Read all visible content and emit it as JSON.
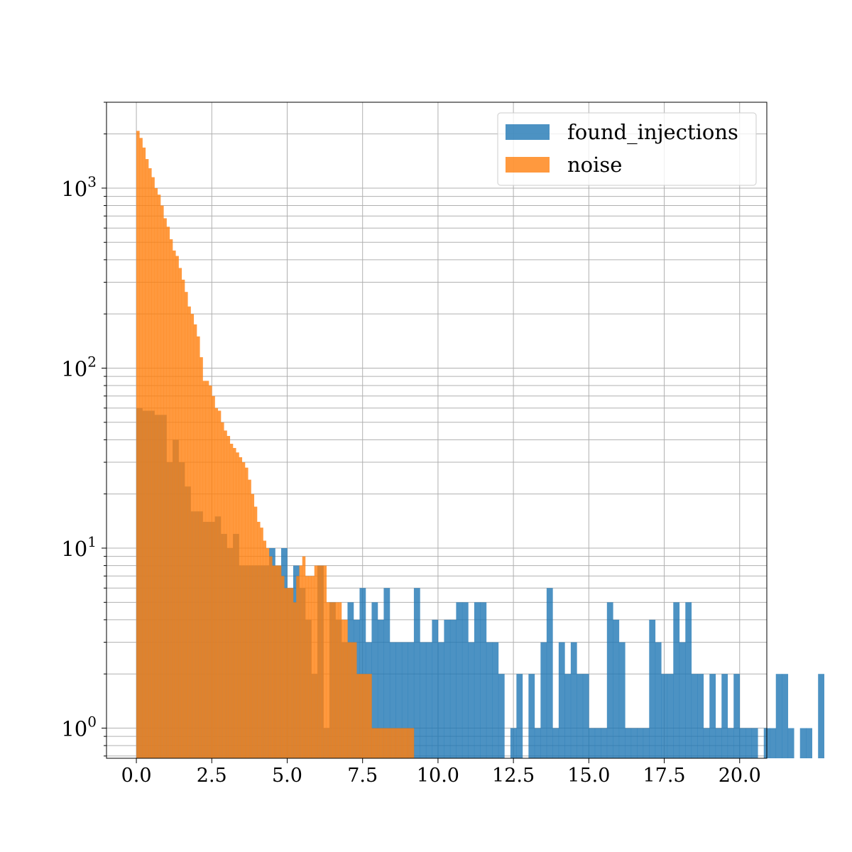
{
  "chart_data": {
    "type": "histogram",
    "xscale": "linear",
    "yscale": "log",
    "xlim": [
      -0.99,
      20.9
    ],
    "ylim": [
      0.68,
      3000
    ],
    "grid": true,
    "legend_position": "top-right",
    "x_ticks": [
      0,
      2.5,
      5,
      7.5,
      10,
      12.5,
      15,
      17.5,
      20
    ],
    "x_tick_labels": [
      "0.0",
      "2.5",
      "5.0",
      "7.5",
      "10.0",
      "12.5",
      "15.0",
      "17.5",
      "20.0"
    ],
    "y_ticks": [
      1,
      10,
      100,
      1000
    ],
    "y_tick_labels": [
      {
        "base": "10",
        "exp": "0"
      },
      {
        "base": "10",
        "exp": "1"
      },
      {
        "base": "10",
        "exp": "2"
      },
      {
        "base": "10",
        "exp": "3"
      }
    ],
    "series": [
      {
        "name": "found_injections",
        "color": "#1f77b4",
        "alpha": 0.8,
        "bin_start": 0.0,
        "bin_width": 0.2,
        "counts": [
          60,
          58,
          58,
          55,
          55,
          30,
          40,
          30,
          22,
          16,
          16,
          14,
          14,
          15,
          12,
          10,
          12,
          8,
          8,
          8,
          8,
          8,
          10,
          8,
          10,
          6,
          8,
          6,
          4,
          2,
          8,
          1,
          5,
          4,
          3,
          5,
          4,
          6,
          3,
          5,
          4,
          6,
          3,
          3,
          3,
          3,
          6,
          3,
          3,
          4,
          3,
          4,
          4,
          5,
          5,
          3,
          5,
          5,
          3,
          3,
          2,
          0,
          1,
          2,
          0,
          2,
          1,
          3,
          6,
          1,
          3,
          2,
          3,
          2,
          2,
          1,
          1,
          1,
          5,
          4,
          3,
          1,
          1,
          1,
          1,
          4,
          3,
          2,
          2,
          5,
          3,
          5,
          2,
          2,
          1,
          2,
          1,
          2,
          1,
          2,
          1,
          1,
          1,
          0,
          1,
          1,
          2,
          2,
          1,
          0,
          1,
          1,
          0,
          2
        ]
      },
      {
        "name": "noise",
        "color": "#ff7f0e",
        "alpha": 0.8,
        "bin_start": 0.0,
        "bin_width": 0.1,
        "counts": [
          2080,
          1900,
          1680,
          1450,
          1290,
          1150,
          1000,
          920,
          800,
          680,
          610,
          520,
          450,
          420,
          360,
          310,
          265,
          220,
          200,
          175,
          150,
          115,
          85,
          85,
          80,
          70,
          60,
          58,
          50,
          45,
          42,
          38,
          36,
          34,
          32,
          30,
          28,
          24,
          20,
          17,
          14,
          13,
          11,
          10,
          9,
          8,
          8,
          8,
          7,
          6,
          6,
          6,
          5,
          7,
          8,
          9,
          7,
          7,
          7,
          8,
          8,
          8,
          8,
          5,
          5,
          5,
          5,
          5,
          4,
          4,
          3,
          3,
          3,
          2,
          2,
          2,
          2,
          2,
          1,
          1,
          1,
          1,
          1,
          1,
          1,
          1,
          1,
          1,
          1,
          1,
          1,
          1,
          0,
          0,
          0,
          0,
          0,
          0,
          0,
          0,
          0,
          0,
          0,
          0,
          0,
          0,
          0,
          0,
          0,
          0,
          0,
          0
        ]
      }
    ]
  }
}
